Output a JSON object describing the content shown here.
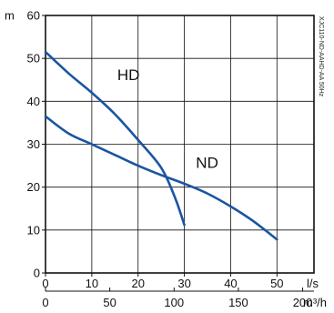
{
  "chart_data": {
    "type": "line",
    "title": "",
    "code_label": "XJC110-ND-AAHD-AA 50Hz",
    "ylabel": "m",
    "xlabel_primary": "l/s",
    "xlabel_secondary": "m³/h",
    "xlim": [
      0,
      58
    ],
    "ylim": [
      0,
      60
    ],
    "grid": true,
    "line_color": "#1a55a0",
    "grid_color": "#111111",
    "x_ticks_primary": [
      "0",
      "10",
      "20",
      "30",
      "40",
      "50"
    ],
    "x_tick_values_primary": [
      0,
      10,
      20,
      30,
      40,
      50
    ],
    "x_ticks_secondary": [
      "0",
      "50",
      "100",
      "150",
      "200"
    ],
    "x_tick_values_secondary": [
      0,
      50,
      100,
      150,
      200
    ],
    "y_ticks": [
      "0",
      "10",
      "20",
      "30",
      "40",
      "50",
      "60"
    ],
    "y_tick_values": [
      0,
      10,
      20,
      30,
      40,
      50,
      60
    ],
    "series": [
      {
        "name": "HD",
        "label_at": [
          15.5,
          45
        ],
        "points": [
          [
            0,
            51.5
          ],
          [
            5,
            46.5
          ],
          [
            10,
            42
          ],
          [
            15,
            37
          ],
          [
            20,
            31
          ],
          [
            25,
            24.5
          ],
          [
            28,
            17.5
          ],
          [
            30,
            11.2
          ]
        ]
      },
      {
        "name": "ND",
        "label_at": [
          32.5,
          24.5
        ],
        "points": [
          [
            0,
            36.5
          ],
          [
            5,
            32.5
          ],
          [
            10,
            30
          ],
          [
            15,
            27.5
          ],
          [
            20,
            25
          ],
          [
            25,
            22.8
          ],
          [
            30,
            20.8
          ],
          [
            35,
            18.5
          ],
          [
            40,
            15.5
          ],
          [
            45,
            12
          ],
          [
            50,
            7.8
          ]
        ]
      }
    ]
  }
}
